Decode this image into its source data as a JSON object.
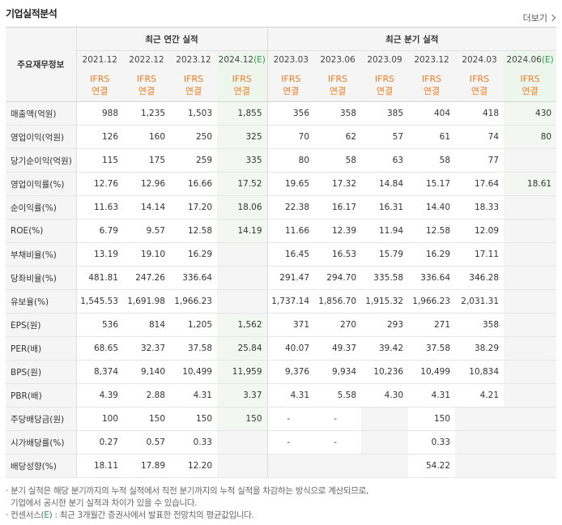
{
  "title": "기업실적분석",
  "more_label": "더보기",
  "header": {
    "row_label": "주요재무정보",
    "annual_label": "최근 연간 실적",
    "quarter_label": "최근 분기 실적",
    "dates": [
      "2021.12",
      "2022.12",
      "2023.12",
      "2024.12",
      "2023.03",
      "2023.06",
      "2023.09",
      "2023.12",
      "2024.03",
      "2024.06"
    ],
    "est_mark": "(E)",
    "ifrs_top": "IFRS",
    "ifrs_bottom": "연결"
  },
  "rows": [
    {
      "label": "매출액(억원)",
      "values": [
        "988",
        "1,235",
        "1,503",
        "1,855",
        "356",
        "358",
        "385",
        "404",
        "418",
        "430"
      ]
    },
    {
      "label": "영업이익(억원)",
      "values": [
        "126",
        "160",
        "250",
        "325",
        "70",
        "62",
        "57",
        "61",
        "74",
        "80"
      ]
    },
    {
      "label": "당기순이익(억원)",
      "values": [
        "115",
        "175",
        "259",
        "335",
        "80",
        "58",
        "63",
        "58",
        "77",
        ""
      ]
    },
    {
      "label": "영업이익률(%)",
      "values": [
        "12.76",
        "12.96",
        "16.66",
        "17.52",
        "19.65",
        "17.32",
        "14.84",
        "15.17",
        "17.64",
        "18.61"
      ]
    },
    {
      "label": "순이익률(%)",
      "values": [
        "11.63",
        "14.14",
        "17.20",
        "18.06",
        "22.38",
        "16.17",
        "16.31",
        "14.40",
        "18.33",
        ""
      ]
    },
    {
      "label": "ROE(%)",
      "values": [
        "6.79",
        "9.57",
        "12.58",
        "14.19",
        "11.66",
        "12.39",
        "11.94",
        "12.58",
        "12.09",
        ""
      ]
    },
    {
      "label": "부채비율(%)",
      "values": [
        "13.19",
        "19.10",
        "16.29",
        "",
        "16.45",
        "16.53",
        "15.79",
        "16.29",
        "17.11",
        ""
      ]
    },
    {
      "label": "당좌비율(%)",
      "values": [
        "481.81",
        "247.26",
        "336.64",
        "",
        "291.47",
        "294.70",
        "335.58",
        "336.64",
        "346.28",
        ""
      ]
    },
    {
      "label": "유보율(%)",
      "values": [
        "1,545.53",
        "1,691.98",
        "1,966.23",
        "",
        "1,737.14",
        "1,856.70",
        "1,915.32",
        "1,966.23",
        "2,031.31",
        ""
      ]
    },
    {
      "label": "EPS(원)",
      "values": [
        "536",
        "814",
        "1,205",
        "1,562",
        "371",
        "270",
        "293",
        "271",
        "358",
        ""
      ]
    },
    {
      "label": "PER(배)",
      "values": [
        "68.65",
        "32.37",
        "37.58",
        "25.84",
        "40.07",
        "49.37",
        "39.42",
        "37.58",
        "38.29",
        ""
      ]
    },
    {
      "label": "BPS(원)",
      "values": [
        "8,374",
        "9,140",
        "10,499",
        "11,959",
        "9,376",
        "9,934",
        "10,236",
        "10,499",
        "10,834",
        ""
      ]
    },
    {
      "label": "PBR(배)",
      "values": [
        "4.39",
        "2.88",
        "4.31",
        "3.37",
        "4.31",
        "5.58",
        "4.30",
        "4.31",
        "4.21",
        ""
      ]
    },
    {
      "label": "주당배당금(원)",
      "values": [
        "100",
        "150",
        "150",
        "150",
        "-",
        "-",
        "",
        "150",
        "",
        ""
      ]
    },
    {
      "label": "시가배당률(%)",
      "values": [
        "0.27",
        "0.57",
        "0.33",
        "",
        "-",
        "-",
        "",
        "0.33",
        "",
        ""
      ]
    },
    {
      "label": "배당성향(%)",
      "values": [
        "18.11",
        "17.89",
        "12.20",
        "",
        "",
        "",
        "",
        "54.22",
        "",
        ""
      ]
    }
  ],
  "notes": {
    "line1": "· 분기 실적은 해당 분기까지의 누적 실적에서 직전 분기까지의 누적 실적을 차감하는 방식으로 계산되므로,",
    "line2": "기업에서 공시한 분기 실적과 차이가 있을 수 있습니다.",
    "line3_prefix": "· 컨센서스(",
    "line3_e": "E",
    "line3_suffix": ") : 최근 3개월간 증권사에서 발표한 전망치의 평균값입니다."
  }
}
